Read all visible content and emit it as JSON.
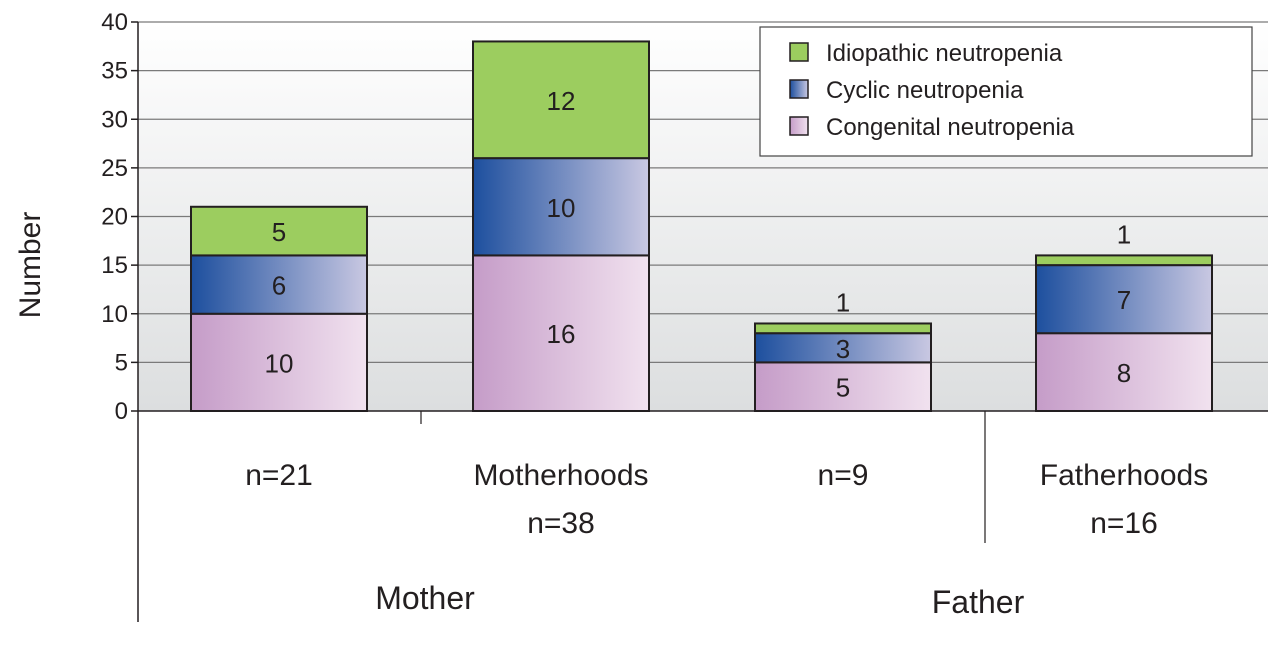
{
  "chart_data": {
    "type": "bar",
    "stacked": true,
    "ylabel": "Number",
    "ylim": [
      0,
      40
    ],
    "yticks": [
      0,
      5,
      10,
      15,
      20,
      25,
      30,
      35,
      40
    ],
    "grid": true,
    "legend_position": "top-right",
    "categories": [
      {
        "line1": "n=21",
        "line2": "",
        "group": "Mother"
      },
      {
        "line1": "Motherhoods",
        "line2": "n=38",
        "group": "Mother"
      },
      {
        "line1": "n=9",
        "line2": "",
        "group": "Father"
      },
      {
        "line1": "Fatherhoods",
        "line2": "n=16",
        "group": "Father"
      }
    ],
    "groups": [
      "Mother",
      "Father"
    ],
    "series": [
      {
        "name": "Congenital neutropenia",
        "values": [
          10,
          16,
          5,
          8
        ],
        "labels": [
          "10",
          "16",
          "5",
          "8"
        ],
        "colors": [
          "#c59cc8",
          "#f1e2ef"
        ]
      },
      {
        "name": "Cyclic neutropenia",
        "values": [
          6,
          10,
          3,
          7
        ],
        "labels": [
          "6",
          "10",
          "3",
          "7"
        ],
        "colors": [
          "#1d4f9e",
          "#c9c8e2"
        ]
      },
      {
        "name": "Idiopathic neutropenia",
        "values": [
          5,
          12,
          1,
          1
        ],
        "labels": [
          "5",
          "12",
          "1",
          "1"
        ],
        "colors": [
          "#9ccd5f",
          "#9ccd5f"
        ]
      }
    ],
    "legend_order": [
      "Idiopathic neutropenia",
      "Cyclic neutropenia",
      "Congenital neutropenia"
    ]
  }
}
